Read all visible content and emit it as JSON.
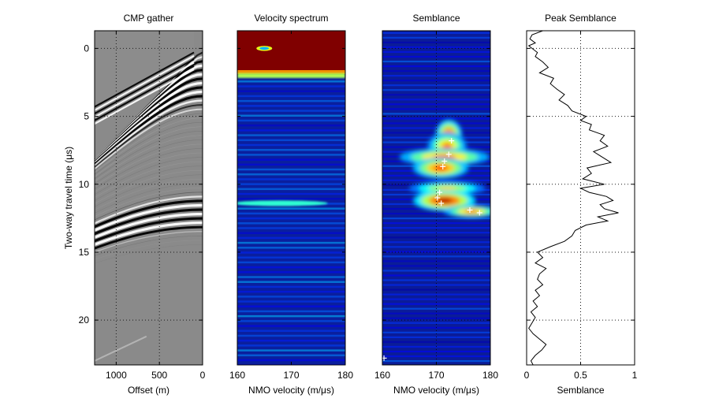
{
  "figure": {
    "colors": {
      "axis": "#000000",
      "grid": "#000000",
      "spectrum_bg": "#0a1f9e",
      "semblance_bg": "#0b1c98",
      "hot": "#800000",
      "pick": "#ffffff",
      "gather_bg": "#8a8a8a"
    }
  },
  "chart_data": [
    {
      "id": "cmp-gather",
      "type": "heatmap",
      "title": "CMP gather",
      "xlabel": "Offset (m)",
      "ylabel": "Two-way travel time (μs)",
      "xlim": [
        1250,
        0
      ],
      "ylim": [
        23.3,
        -1.3
      ],
      "xticks": [
        1000,
        500,
        0
      ],
      "xticklabels": [
        "1000",
        "500",
        "0"
      ],
      "yticks": [
        0,
        5,
        10,
        15,
        20
      ],
      "yticklabels": [
        "0",
        "5",
        "10",
        "15",
        "20"
      ],
      "grid": true,
      "first_break": [
        [
          100,
          0.3
        ],
        [
          1250,
          4.3
        ]
      ],
      "strong_reflection_bands": [
        1.5,
        2.5,
        3.2,
        11.2,
        11.8,
        12.4,
        13.0
      ],
      "colormap": "gray"
    },
    {
      "id": "velocity-spectrum",
      "type": "heatmap",
      "title": "Velocity spectrum",
      "xlabel": "NMO velocity (m/μs)",
      "xlim": [
        160,
        180
      ],
      "ylim": [
        23.3,
        -1.3
      ],
      "xticks": [
        160,
        170,
        180
      ],
      "xticklabels": [
        "160",
        "170",
        "180"
      ],
      "yticks": [
        0,
        5,
        10,
        15,
        20
      ],
      "grid": false,
      "saturated_band": [
        -1.3,
        1.8
      ],
      "hot_spot": {
        "velocity": 165,
        "time": 0.0
      },
      "weak_bands": [
        2.0,
        11.4
      ],
      "colormap": "jet"
    },
    {
      "id": "semblance",
      "type": "heatmap",
      "title": "Semblance",
      "xlabel": "NMO velocity (m/μs)",
      "xlim": [
        160,
        180
      ],
      "ylim": [
        23.3,
        -1.3
      ],
      "xticks": [
        160,
        170,
        180
      ],
      "xticklabels": [
        "160",
        "170",
        "180"
      ],
      "yticks": [
        0,
        5,
        10,
        15,
        20
      ],
      "grid": true,
      "colormap": "jet",
      "blobs": [
        {
          "velocity": 172.3,
          "time": 6.4,
          "rv": 1.9,
          "rt": 0.9,
          "peak": 0.95
        },
        {
          "velocity": 172.0,
          "time": 7.2,
          "rv": 2.8,
          "rt": 0.8,
          "peak": 0.8
        },
        {
          "velocity": 171.5,
          "time": 8.0,
          "rv": 6.5,
          "rt": 0.5,
          "peak": 0.85
        },
        {
          "velocity": 170.8,
          "time": 8.8,
          "rv": 4.0,
          "rt": 0.6,
          "peak": 0.9
        },
        {
          "velocity": 172.0,
          "time": 10.3,
          "rv": 5.5,
          "rt": 0.4,
          "peak": 0.7
        },
        {
          "velocity": 171.5,
          "time": 11.2,
          "rv": 4.5,
          "rt": 0.6,
          "peak": 1.0
        },
        {
          "velocity": 176.5,
          "time": 12.0,
          "rv": 4.0,
          "rt": 0.35,
          "peak": 0.85
        }
      ],
      "picks": [
        {
          "velocity": 172.8,
          "time": 6.8
        },
        {
          "velocity": 172.3,
          "time": 7.8
        },
        {
          "velocity": 171.5,
          "time": 8.3
        },
        {
          "velocity": 171.2,
          "time": 8.7
        },
        {
          "velocity": 170.6,
          "time": 10.6
        },
        {
          "velocity": 170.2,
          "time": 11.0
        },
        {
          "velocity": 170.9,
          "time": 11.4
        },
        {
          "velocity": 176.2,
          "time": 11.9
        },
        {
          "velocity": 178.0,
          "time": 12.1
        },
        {
          "velocity": 160.3,
          "time": 22.8
        }
      ]
    },
    {
      "id": "peak-semblance",
      "type": "line",
      "title": "Peak Semblance",
      "xlabel": "Semblance",
      "xlim": [
        0,
        1
      ],
      "ylim": [
        23.3,
        -1.3
      ],
      "xticks": [
        0,
        0.5,
        1
      ],
      "xticklabels": [
        "0",
        "0.5",
        "1"
      ],
      "yticks": [
        0,
        5,
        10,
        15,
        20
      ],
      "grid": true,
      "series": [
        {
          "name": "Peak semblance",
          "time": [
            -1.3,
            -1.0,
            -0.7,
            -0.4,
            -0.2,
            0.0,
            0.3,
            0.6,
            1.0,
            1.4,
            1.8,
            2.2,
            2.6,
            3.0,
            3.4,
            3.8,
            4.2,
            4.6,
            5.0,
            5.3,
            5.6,
            6.0,
            6.4,
            6.8,
            7.2,
            7.6,
            8.0,
            8.4,
            8.8,
            9.2,
            9.6,
            10.0,
            10.3,
            10.6,
            10.9,
            11.2,
            11.5,
            11.8,
            12.1,
            12.4,
            12.7,
            13.0,
            13.4,
            13.8,
            14.2,
            14.6,
            15.0,
            15.4,
            15.8,
            16.2,
            16.6,
            17.0,
            17.4,
            17.8,
            18.2,
            18.6,
            19.0,
            19.4,
            19.8,
            20.2,
            20.6,
            21.0,
            21.4,
            21.8,
            22.2,
            22.6,
            23.0,
            23.3
          ],
          "semblance": [
            0.15,
            0.05,
            0.03,
            0.08,
            0.02,
            0.05,
            0.1,
            0.08,
            0.15,
            0.2,
            0.12,
            0.25,
            0.22,
            0.28,
            0.35,
            0.3,
            0.38,
            0.42,
            0.55,
            0.5,
            0.6,
            0.58,
            0.72,
            0.68,
            0.75,
            0.62,
            0.7,
            0.78,
            0.56,
            0.6,
            0.52,
            0.72,
            0.5,
            0.58,
            0.74,
            0.8,
            0.68,
            0.72,
            0.85,
            0.66,
            0.75,
            0.55,
            0.45,
            0.42,
            0.35,
            0.22,
            0.1,
            0.15,
            0.08,
            0.18,
            0.12,
            0.1,
            0.15,
            0.08,
            0.12,
            0.06,
            0.1,
            0.04,
            0.08,
            0.05,
            0.02,
            0.06,
            0.12,
            0.18,
            0.14,
            0.08,
            0.04,
            0.06
          ]
        }
      ]
    }
  ]
}
